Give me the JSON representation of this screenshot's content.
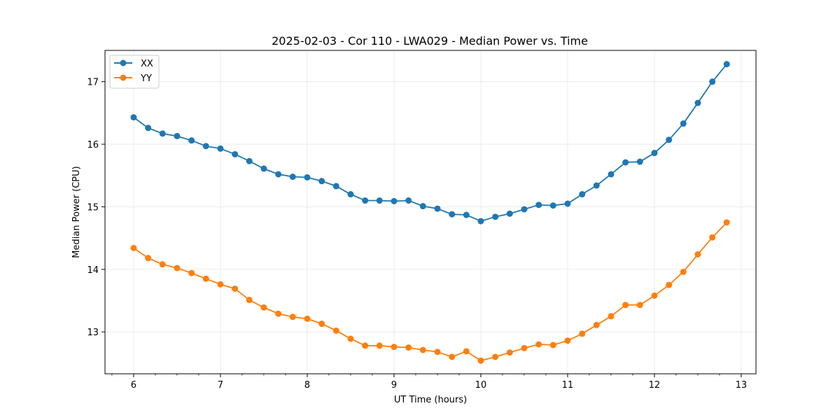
{
  "chart_data": {
    "type": "line",
    "title": "2025-02-03 - Cor 110 - LWA029 - Median Power vs. Time",
    "xlabel": "UT Time (hours)",
    "ylabel": "Median Power (CPU)",
    "xlim": [
      5.67,
      13.17
    ],
    "ylim": [
      12.33,
      17.5
    ],
    "xticks": [
      6,
      7,
      8,
      9,
      10,
      11,
      12,
      13
    ],
    "yticks": [
      13,
      14,
      15,
      16,
      17
    ],
    "grid": true,
    "legend_position": "top-left",
    "x": [
      6.0,
      6.167,
      6.333,
      6.5,
      6.667,
      6.833,
      7.0,
      7.167,
      7.333,
      7.5,
      7.667,
      7.833,
      8.0,
      8.167,
      8.333,
      8.5,
      8.667,
      8.833,
      9.0,
      9.167,
      9.333,
      9.5,
      9.667,
      9.833,
      10.0,
      10.167,
      10.333,
      10.5,
      10.667,
      10.833,
      11.0,
      11.167,
      11.333,
      11.5,
      11.667,
      11.833,
      12.0,
      12.167,
      12.333,
      12.5,
      12.667,
      12.833
    ],
    "series": [
      {
        "name": "XX",
        "color": "#1f77b4",
        "values": [
          16.43,
          16.26,
          16.17,
          16.13,
          16.06,
          15.97,
          15.93,
          15.84,
          15.73,
          15.61,
          15.52,
          15.48,
          15.47,
          15.41,
          15.33,
          15.2,
          15.1,
          15.1,
          15.09,
          15.1,
          15.01,
          14.97,
          14.88,
          14.87,
          14.77,
          14.84,
          14.89,
          14.96,
          15.03,
          15.02,
          15.05,
          15.2,
          15.34,
          15.52,
          15.71,
          15.72,
          15.86,
          16.07,
          16.33,
          16.66,
          17.0,
          17.28
        ]
      },
      {
        "name": "YY",
        "color": "#ff7f0e",
        "values": [
          14.34,
          14.18,
          14.08,
          14.02,
          13.94,
          13.85,
          13.76,
          13.69,
          13.51,
          13.39,
          13.29,
          13.24,
          13.21,
          13.13,
          13.02,
          12.89,
          12.78,
          12.78,
          12.76,
          12.75,
          12.71,
          12.68,
          12.6,
          12.69,
          12.54,
          12.6,
          12.67,
          12.74,
          12.8,
          12.79,
          12.86,
          12.97,
          13.11,
          13.25,
          13.43,
          13.43,
          13.58,
          13.75,
          13.96,
          14.24,
          14.51,
          14.75
        ]
      }
    ]
  }
}
